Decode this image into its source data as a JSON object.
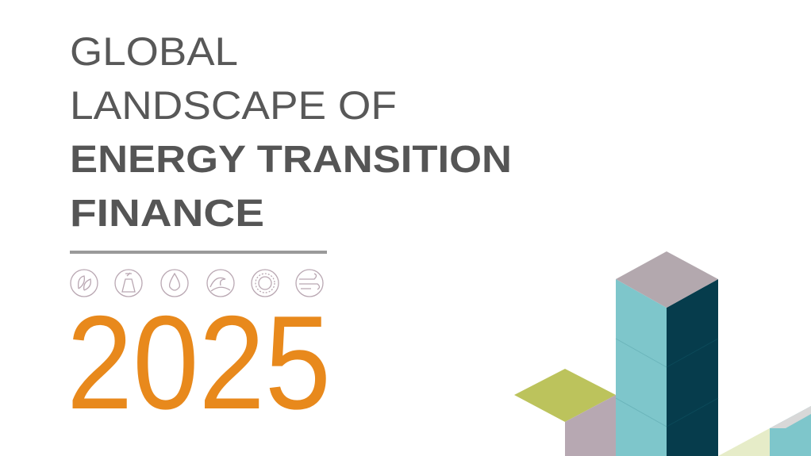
{
  "header": {
    "title_lines": [
      "GLOBAL",
      "LANDSCAPE OF",
      "ENERGY TRANSITION",
      "FINANCE"
    ],
    "year": "2025"
  }
}
